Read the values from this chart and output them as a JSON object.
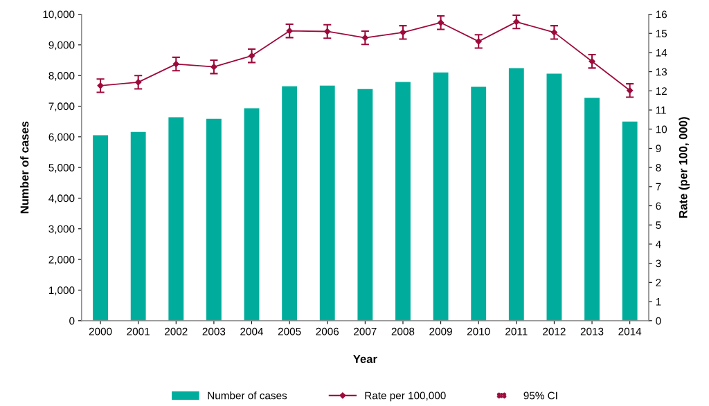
{
  "chart_data": {
    "type": "bar",
    "xlabel": "Year",
    "ylabel": "Number of cases",
    "y2label": "Rate (per 100, 000)",
    "categories": [
      "2000",
      "2001",
      "2002",
      "2003",
      "2004",
      "2005",
      "2006",
      "2007",
      "2008",
      "2009",
      "2010",
      "2011",
      "2012",
      "2013",
      "2014"
    ],
    "series": [
      {
        "name": "Number of cases",
        "color": "#00ad9c",
        "values": [
          6050,
          6160,
          6640,
          6590,
          6930,
          7650,
          7670,
          7560,
          7790,
          8100,
          7630,
          8240,
          8060,
          7270,
          6500
        ]
      },
      {
        "name": "Rate per 100,000",
        "type": "line",
        "axis": "y2",
        "color": "#9e0a3c",
        "marker": "diamond",
        "values": [
          12.27,
          12.45,
          13.4,
          13.25,
          13.83,
          15.13,
          15.1,
          14.77,
          15.05,
          15.56,
          14.58,
          15.6,
          15.05,
          13.54,
          12.02
        ],
        "errors": [
          0.35,
          0.35,
          0.35,
          0.35,
          0.35,
          0.35,
          0.35,
          0.35,
          0.35,
          0.35,
          0.35,
          0.35,
          0.35,
          0.35,
          0.35
        ]
      }
    ],
    "ylim": [
      0,
      10000
    ],
    "yticks": [
      {
        "value": 0,
        "label": "0"
      },
      {
        "value": 1000,
        "label": "1,000"
      },
      {
        "value": 2000,
        "label": "2,000"
      },
      {
        "value": 3000,
        "label": "3,000"
      },
      {
        "value": 4000,
        "label": "4,000"
      },
      {
        "value": 5000,
        "label": "5,000"
      },
      {
        "value": 6000,
        "label": "6,000"
      },
      {
        "value": 7000,
        "label": "7,000"
      },
      {
        "value": 8000,
        "label": "8,000"
      },
      {
        "value": 9000,
        "label": "9,000"
      },
      {
        "value": 10000,
        "label": "10,000"
      }
    ],
    "y2lim": [
      0,
      16
    ],
    "y2ticks": [
      0,
      1,
      2,
      3,
      4,
      5,
      6,
      7,
      8,
      9,
      10,
      11,
      12,
      13,
      14,
      15,
      16
    ],
    "annotations": [
      "95% CI"
    ],
    "legend": "bottom",
    "grid": false
  }
}
